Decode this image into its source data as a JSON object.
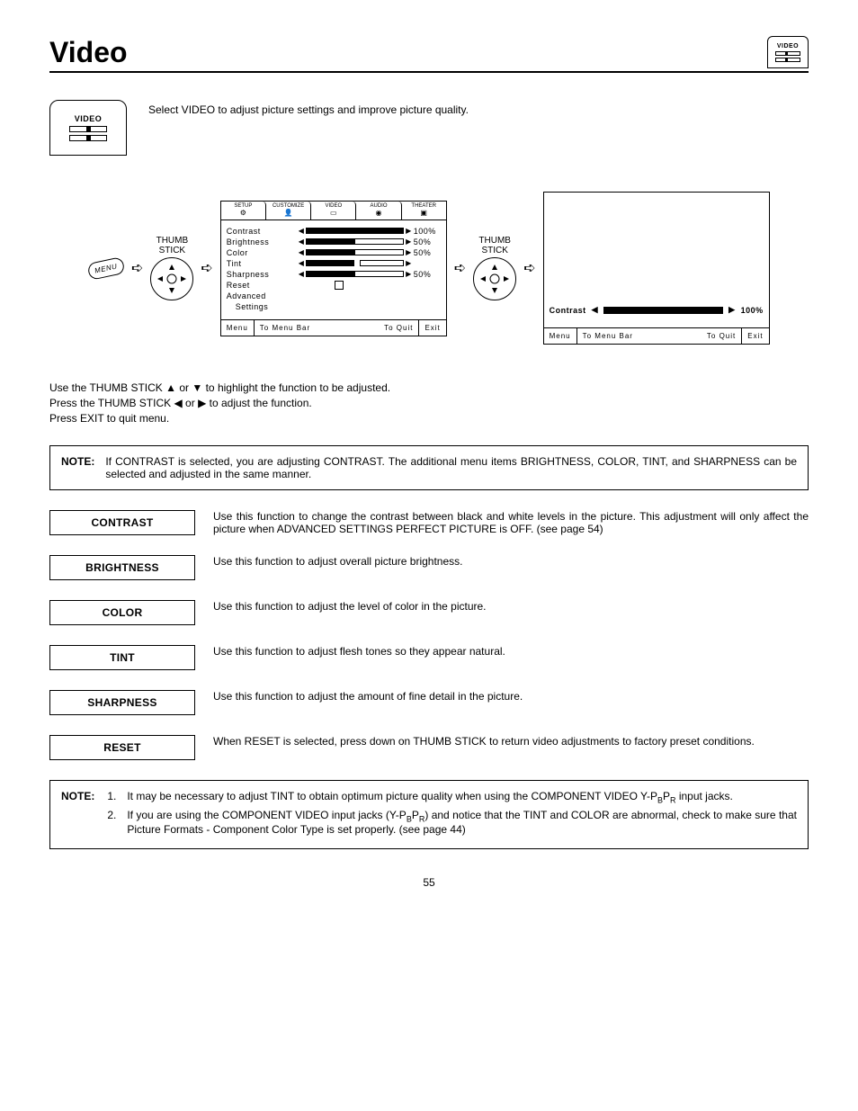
{
  "page": {
    "title": "Video",
    "number": "55"
  },
  "tab_icon": {
    "label": "VIDEO"
  },
  "intro": {
    "icon_label": "VIDEO",
    "text": "Select VIDEO to adjust picture settings and improve picture quality."
  },
  "flow": {
    "menu_button": "MENU",
    "thumb_label_1": "THUMB",
    "thumb_label_2": "STICK"
  },
  "osd": {
    "tabs": [
      {
        "label": "SETUP",
        "icon": "⚙"
      },
      {
        "label": "CUSTOMIZE",
        "icon": "👤"
      },
      {
        "label": "VIDEO",
        "icon": "▭"
      },
      {
        "label": "AUDIO",
        "icon": "◉"
      },
      {
        "label": "THEATER",
        "icon": "▣"
      }
    ],
    "rows": [
      {
        "label": "Contrast",
        "value": "100%",
        "fill_pct": 100,
        "has_slider": true
      },
      {
        "label": "Brightness",
        "value": "50%",
        "fill_pct": 50,
        "has_slider": true
      },
      {
        "label": "Color",
        "value": "50%",
        "fill_pct": 50,
        "has_slider": true
      },
      {
        "label": "Tint",
        "value": "",
        "fill_pct": 50,
        "has_slider": true,
        "center_mark": true
      },
      {
        "label": "Sharpness",
        "value": "50%",
        "fill_pct": 50,
        "has_slider": true
      },
      {
        "label": "Reset",
        "value": "",
        "fill_pct": 0,
        "has_slider": false,
        "checkbox": true
      },
      {
        "label": "Advanced",
        "value": "",
        "fill_pct": 0,
        "has_slider": false
      },
      {
        "label": "Settings",
        "value": "",
        "fill_pct": 0,
        "has_slider": false,
        "indent": true
      }
    ],
    "footer": {
      "menu": "Menu",
      "menubar": "To Menu Bar",
      "quit": "To Quit",
      "exit": "Exit"
    },
    "single": {
      "label": "Contrast",
      "value": "100%",
      "fill_pct": 100
    }
  },
  "instructions": {
    "l1_a": "Use the THUMB STICK ",
    "l1_b": " or ",
    "l1_c": " to highlight the function to be adjusted.",
    "l2_a": "Press the THUMB STICK ",
    "l2_b": " or ",
    "l2_c": " to adjust the function.",
    "l3": "Press EXIT to quit menu."
  },
  "note1": {
    "label": "NOTE:",
    "text": "If CONTRAST is selected, you are adjusting CONTRAST.  The additional menu items BRIGHTNESS, COLOR, TINT, and SHARPNESS can be selected and adjusted in the same manner."
  },
  "defs": [
    {
      "label": "CONTRAST",
      "text": "Use this function to change the contrast between black and white levels in the picture.  This adjustment will only affect the picture when ADVANCED SETTINGS PERFECT PICTURE is OFF. (see page 54)"
    },
    {
      "label": "BRIGHTNESS",
      "text": "Use this function to adjust overall picture brightness."
    },
    {
      "label": "COLOR",
      "text": "Use this function to adjust the level of color in the picture."
    },
    {
      "label": "TINT",
      "text": "Use this function to adjust flesh tones so they appear natural."
    },
    {
      "label": "SHARPNESS",
      "text": "Use this function to adjust the amount of fine detail in the picture."
    },
    {
      "label": "RESET",
      "text": "When RESET is selected, press down on THUMB STICK to return video adjustments to factory preset conditions."
    }
  ],
  "note2": {
    "label": "NOTE:",
    "items": [
      {
        "pre": "It may be necessary to adjust TINT to obtain optimum picture quality when using the COMPONENT VIDEO Y-P",
        "sub1": "B",
        "mid": "P",
        "sub2": "R",
        "post": " input jacks."
      },
      {
        "pre": "If you are using the COMPONENT VIDEO input jacks (Y-P",
        "sub1": "B",
        "mid": "P",
        "sub2": "R",
        "post": ") and notice that the TINT and COLOR are abnormal, check to make sure that Picture Formats - Component Color Type is set properly. (see page 44)"
      }
    ]
  }
}
